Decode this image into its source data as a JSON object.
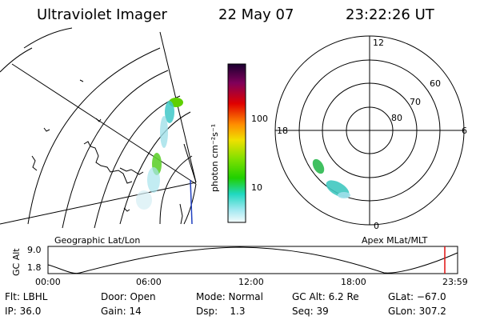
{
  "header": {
    "instrument": "Ultraviolet Imager",
    "date": "22 May 07",
    "time": "23:22:26 UT"
  },
  "colorbar": {
    "unit_label": "photon cm⁻²s⁻¹",
    "tick_100": "100",
    "tick_10": "10"
  },
  "polar_plot": {
    "labels": [
      "12",
      "6",
      "0",
      "18"
    ],
    "lat_labels": [
      "60",
      "70",
      "80"
    ],
    "caption": "Apex MLat/MLT"
  },
  "geo_plot": {
    "caption": "Geographic Lat/Lon"
  },
  "altitude_plot": {
    "ylabel": "GC Alt",
    "yticks": [
      "9.0",
      "1.8"
    ],
    "xticks": [
      "00:00",
      "06:00",
      "12:00",
      "18:00",
      "23:59"
    ],
    "marker_color": "#e01010"
  },
  "info": {
    "row1": [
      {
        "text": "Flt: LBHL"
      },
      {
        "text": "Door: Open"
      },
      {
        "text": "Mode: Normal"
      },
      {
        "text": "GC Alt: 6.2 Re"
      },
      {
        "text": "GLat: −67.0"
      }
    ],
    "row2": [
      {
        "text": "IP: 36.0"
      },
      {
        "text": "Gain: 14"
      },
      {
        "text": "Dsp:    1.3"
      },
      {
        "text": "Seq: 39"
      },
      {
        "text": "GLon: 307.2"
      }
    ]
  }
}
